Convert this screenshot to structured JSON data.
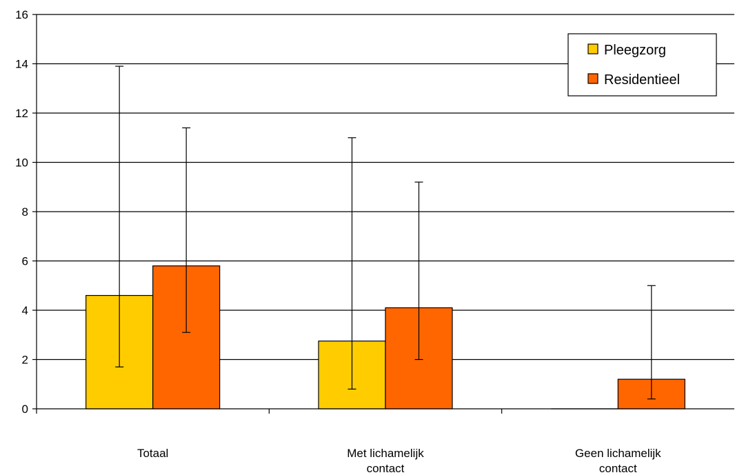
{
  "chart_data": {
    "type": "bar",
    "title": "",
    "xlabel": "",
    "ylabel": "",
    "ylim": [
      0,
      16
    ],
    "yticks": [
      0,
      2,
      4,
      6,
      8,
      10,
      12,
      14,
      16
    ],
    "grid": true,
    "legend_position": "top-right",
    "categories": [
      [
        "Totaal"
      ],
      [
        "Met lichamelijk",
        "contact"
      ],
      [
        "Geen lichamelijk",
        "contact"
      ]
    ],
    "series": [
      {
        "name": "Pleegzorg",
        "color": "#FFCC00",
        "values": [
          4.6,
          2.75,
          0
        ],
        "error_low": [
          1.7,
          0.8,
          0
        ],
        "error_high": [
          13.9,
          11.0,
          0
        ]
      },
      {
        "name": "Residentieel",
        "color": "#FF6600",
        "values": [
          5.8,
          4.1,
          1.2
        ],
        "error_low": [
          3.1,
          2.0,
          0.4
        ],
        "error_high": [
          11.4,
          9.2,
          5.0
        ]
      }
    ]
  }
}
